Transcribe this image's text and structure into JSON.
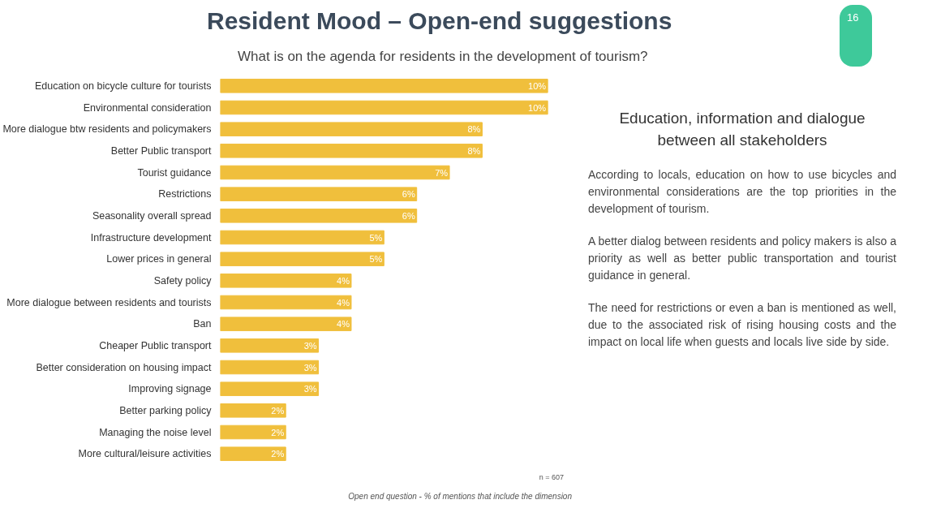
{
  "chart_data": {
    "type": "bar",
    "orientation": "horizontal",
    "title": "Resident Mood – Open-end suggestions",
    "subtitle": "What is on the agenda for residents in the development of tourism?",
    "categories": [
      "Education on bicycle culture for tourists",
      "Environmental consideration",
      "More dialogue btw residents and policymakers",
      "Better Public transport",
      "Tourist guidance",
      "Restrictions",
      "Seasonality overall spread",
      "Infrastructure development",
      "Lower prices in general",
      "Safety policy",
      "More dialogue between residents and tourists",
      "Ban",
      "Cheaper Public transport",
      "Better consideration on housing impact",
      "Improving signage",
      "Better parking policy",
      "Managing the noise level",
      "More cultural/leisure activities"
    ],
    "values": [
      10,
      10,
      8,
      8,
      7,
      6,
      6,
      5,
      5,
      4,
      4,
      4,
      3,
      3,
      3,
      2,
      2,
      2
    ],
    "value_labels": [
      "10%",
      "10%",
      "8%",
      "8%",
      "7%",
      "6%",
      "6%",
      "5%",
      "5%",
      "4%",
      "4%",
      "4%",
      "3%",
      "3%",
      "3%",
      "2%",
      "2%",
      "2%"
    ],
    "color": "#f0bf3c",
    "grid": false,
    "annotations": [
      "16",
      "n = 607",
      "Open end question - % of mentions that include the dimension",
      "Education, information and dialogue between all stakeholders",
      "According to locals, education on how to use bicycles and environmental considerations are the top priorities in the development of tourism.",
      "A better dialog between residents and policy makers is also a priority as well as better public transportation and tourist guidance in general.",
      "The need for restrictions or even a ban is mentioned as well, due to the associated risk of rising housing costs and the impact on local life when guests and locals live side by side."
    ]
  }
}
